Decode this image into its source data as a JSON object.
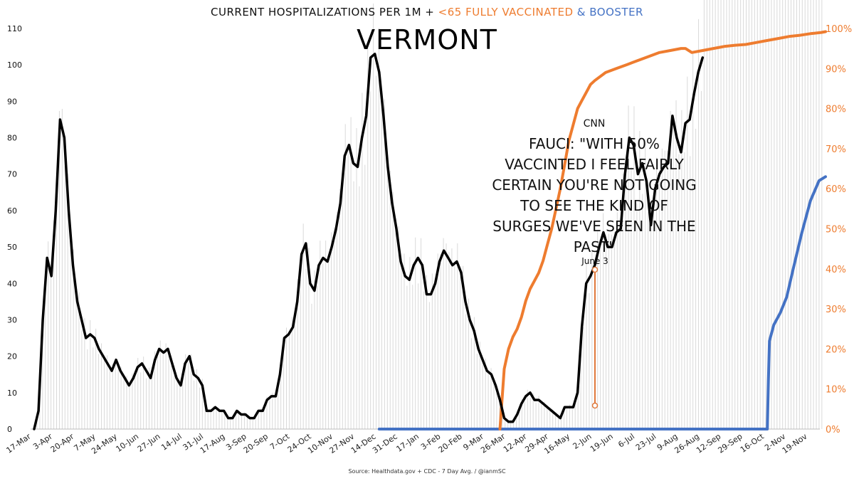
{
  "header": {
    "title_part1": "CURRENT HOSPITALIZATIONS PER 1M + ",
    "title_part2": "<65 FULLY VACCINATED",
    "title_part3": " & ",
    "title_part4": "BOOSTER",
    "state": "VERMONT"
  },
  "annotation": {
    "source": "CNN",
    "quote": "FAUCI: \"WITH 50% VACCINTED I FEEL FAIRLY CERTAIN YOU'RE NOT GOING TO SEE THE KIND OF SURGES WE'VE SEEN IN THE PAST\"",
    "date_label": "June 3",
    "line_color": "#e0783a"
  },
  "footer": {
    "source": "Source: Healthdata.gov + CDC - 7 Day Avg.  / @ianmSC"
  },
  "colors": {
    "hospitalizations": "#000000",
    "vaccinated": "#ee7c2f",
    "booster": "#4472c4",
    "daily_bars": "#d9d9d9",
    "left_axis_text": "#111111",
    "right_axis_text": "#ee7c2f"
  },
  "chart_data": {
    "type": "line",
    "x_tick_labels": [
      "17-Mar",
      "3-Apr",
      "20-Apr",
      "7-May",
      "24-May",
      "10-Jun",
      "27-Jun",
      "14-Jul",
      "31-Jul",
      "17-Aug",
      "3-Sep",
      "20-Sep",
      "7-Oct",
      "24-Oct",
      "10-Nov",
      "27-Nov",
      "14-Dec",
      "31-Dec",
      "17-Jan",
      "3-Feb",
      "20-Feb",
      "9-Mar",
      "26-Mar",
      "12-Apr",
      "29-Apr",
      "16-May",
      "2-Jun",
      "19-Jun",
      "6-Jul",
      "23-Jul",
      "9-Aug",
      "26-Aug",
      "12-Sep",
      "29-Sep",
      "16-Oct",
      "2-Nov",
      "19-Nov"
    ],
    "y_left": {
      "ylim": [
        0,
        110
      ],
      "ticks": [
        0,
        10,
        20,
        30,
        40,
        50,
        60,
        70,
        80,
        90,
        100,
        110
      ]
    },
    "y_right": {
      "ylim": [
        0,
        100
      ],
      "ticks": [
        "0%",
        "10%",
        "20%",
        "30%",
        "40%",
        "50%",
        "60%",
        "70%",
        "80%",
        "90%",
        "100%"
      ]
    },
    "grid": false,
    "legend": "none",
    "series": [
      {
        "axis": "left",
        "x_tick_index": [
          0,
          0.2,
          0.4,
          0.6,
          0.8,
          1.0,
          1.2,
          1.4,
          1.6,
          1.8,
          2.0,
          2.2,
          2.4,
          2.6,
          2.8,
          3.0,
          3.2,
          3.4,
          3.6,
          3.8,
          4.0,
          4.2,
          4.4,
          4.6,
          4.8,
          5.0,
          5.2,
          5.4,
          5.6,
          5.8,
          6.0,
          6.2,
          6.4,
          6.6,
          6.8,
          7.0,
          7.2,
          7.4,
          7.6,
          7.8,
          8.0,
          8.2,
          8.4,
          8.6,
          8.8,
          9.0,
          9.2,
          9.4,
          9.6,
          9.8,
          10.0,
          10.2,
          10.4,
          10.6,
          10.8,
          11.0,
          11.2,
          11.4,
          11.6,
          11.8,
          12.0,
          12.2,
          12.4,
          12.6,
          12.8,
          13.0,
          13.2,
          13.4,
          13.6,
          13.8,
          14.0,
          14.2,
          14.4,
          14.6,
          14.8,
          15.0,
          15.2,
          15.4,
          15.6,
          15.8,
          16.0,
          16.2,
          16.4,
          16.6,
          16.8,
          17.0,
          17.2,
          17.4,
          17.6,
          17.8,
          18.0,
          18.2,
          18.4,
          18.6,
          18.8,
          19.0,
          19.2,
          19.4,
          19.6,
          19.8,
          20.0,
          20.2,
          20.4,
          20.6,
          20.8,
          21.0,
          21.2,
          21.4,
          21.6,
          21.8,
          22.0,
          22.2,
          22.4,
          22.6,
          22.8,
          23.0,
          23.2,
          23.4,
          23.6,
          23.8,
          24.0,
          24.2,
          24.4,
          24.6,
          24.8,
          25.0,
          25.2,
          25.4,
          25.6,
          25.8,
          26.0,
          26.2,
          26.4,
          26.6,
          26.8,
          27.0,
          27.2,
          27.4,
          27.6,
          27.8,
          28.0,
          28.2,
          28.4,
          28.6,
          28.8,
          29.0,
          29.2,
          29.4,
          29.6,
          29.8,
          30.0,
          30.2,
          30.4,
          30.6,
          30.8,
          31.0,
          31.2,
          31.4,
          31.6,
          31.8,
          32.0,
          32.2,
          32.4,
          32.6,
          32.8,
          33.0,
          33.2,
          33.4,
          33.6,
          33.8,
          34.0,
          34.2,
          34.4,
          34.6,
          34.8,
          35.0,
          35.2,
          35.4,
          35.6,
          35.8,
          36.0,
          36.2,
          36.4,
          36.6
        ],
        "values": [
          0,
          5,
          30,
          47,
          42,
          60,
          85,
          80,
          60,
          45,
          35,
          30,
          25,
          26,
          25,
          22,
          20,
          18,
          16,
          19,
          16,
          14,
          12,
          14,
          17,
          18,
          16,
          14,
          19,
          22,
          21,
          22,
          18,
          14,
          12,
          18,
          20,
          15,
          14,
          12,
          5,
          5,
          6,
          5,
          5,
          3,
          3,
          5,
          4,
          4,
          3,
          3,
          5,
          5,
          8,
          9,
          9,
          15,
          25,
          26,
          28,
          35,
          48,
          51,
          40,
          38,
          45,
          47,
          46,
          50,
          55,
          62,
          75,
          78,
          73,
          72,
          80,
          86,
          102,
          103,
          98,
          86,
          72,
          62,
          55,
          46,
          42,
          41,
          45,
          47,
          45,
          37,
          37,
          40,
          46,
          49,
          47,
          45,
          46,
          43,
          35,
          30,
          27,
          22,
          19,
          16,
          15,
          12,
          8,
          3,
          2,
          2,
          4,
          7,
          9,
          10,
          8,
          8,
          7,
          6,
          5,
          4,
          3,
          6,
          6,
          6,
          10,
          28,
          40,
          42,
          45,
          50,
          54,
          50,
          50,
          54,
          55,
          70,
          80,
          78,
          70,
          73,
          68,
          56,
          66,
          70,
          72,
          73,
          86,
          80,
          76,
          84,
          85,
          92,
          98,
          102
        ]
      },
      {
        "axis": "right",
        "x_tick_index": [
          21.6,
          21.8,
          22.0,
          22.2,
          22.4,
          22.6,
          22.8,
          23.0,
          23.2,
          23.4,
          23.6,
          23.8,
          24.0,
          24.2,
          24.4,
          24.6,
          24.8,
          25.0,
          25.2,
          25.4,
          25.6,
          25.8,
          26.0,
          26.5,
          27.0,
          27.5,
          28.0,
          28.5,
          29.0,
          29.5,
          30.0,
          30.2,
          30.5,
          31.0,
          31.5,
          32.0,
          32.5,
          33.0,
          33.5,
          34.0,
          34.5,
          35.0,
          35.5,
          36.0,
          36.5,
          36.7
        ],
        "values": [
          0,
          15,
          20,
          23,
          25,
          28,
          32,
          35,
          37,
          39,
          42,
          46,
          50,
          55,
          60,
          66,
          72,
          76,
          80,
          82,
          84,
          86,
          87,
          89,
          90,
          91,
          92,
          93,
          94,
          94.5,
          95,
          95,
          94,
          94.5,
          95,
          95.5,
          95.8,
          96,
          96.5,
          97,
          97.5,
          98,
          98.3,
          98.7,
          99,
          99.2
        ]
      },
      {
        "axis": "right",
        "x_tick_index": [
          16.0,
          20.0,
          25.0,
          30.0,
          34.0,
          34.05,
          34.1,
          34.3,
          34.6,
          34.9,
          35.2,
          35.6,
          36.0,
          36.4,
          36.7
        ],
        "values": [
          0,
          0,
          0,
          0,
          0,
          12,
          22,
          26,
          29,
          33,
          40,
          49,
          57,
          62,
          63
        ]
      }
    ]
  }
}
